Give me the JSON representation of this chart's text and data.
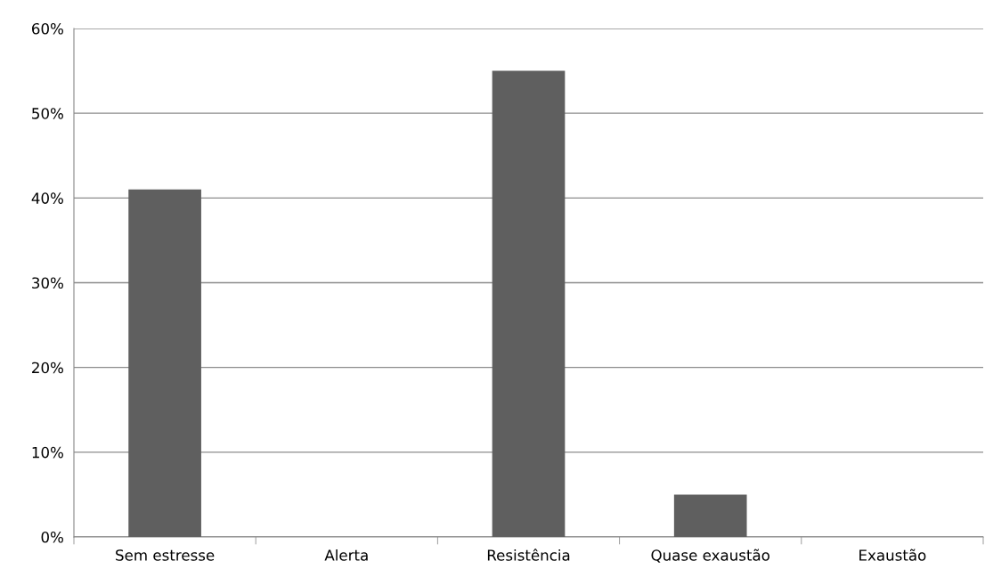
{
  "chart_data": {
    "type": "bar",
    "categories": [
      "Sem estresse",
      "Alerta",
      "Resistência",
      "Quase exaustão",
      "Exaustão"
    ],
    "values": [
      41,
      0,
      55,
      5,
      0
    ],
    "color": "#5f5f5f",
    "ylim": [
      0,
      60
    ],
    "yticks": [
      {
        "value": 0,
        "label": "0%"
      },
      {
        "value": 10,
        "label": "10%"
      },
      {
        "value": 20,
        "label": "20%"
      },
      {
        "value": 30,
        "label": "30%"
      },
      {
        "value": 40,
        "label": "40%"
      },
      {
        "value": 50,
        "label": "50%"
      },
      {
        "value": 60,
        "label": "60%"
      }
    ],
    "grid": "y"
  }
}
